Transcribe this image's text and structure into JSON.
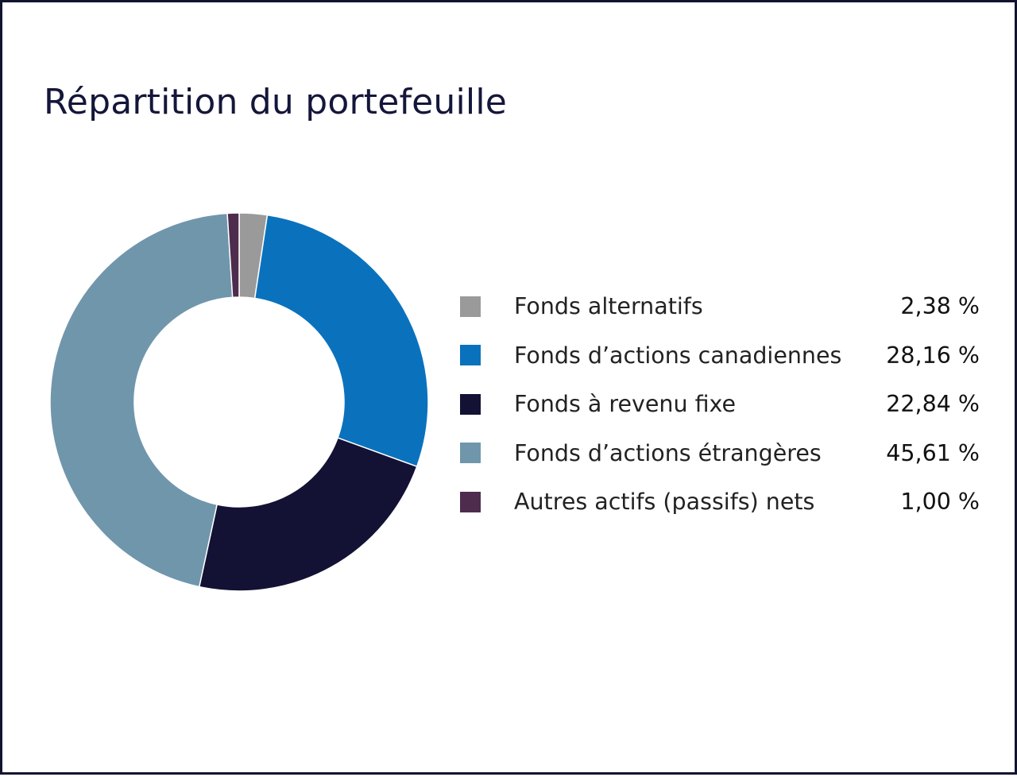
{
  "chart_data": {
    "type": "pie",
    "title": "Répartition du portefeuille",
    "unit": "%",
    "categories": [
      "Fonds alternatifs",
      "Fonds d’actions canadiennes",
      "Fonds à revenu fixe",
      "Fonds d’actions étrangères",
      "Autres actifs (passifs) nets"
    ],
    "values": [
      2.38,
      28.16,
      22.84,
      45.61,
      1.0
    ],
    "value_labels": [
      "2,38 %",
      "28,16 %",
      "22,84 %",
      "45,61 %",
      "1,00 %"
    ],
    "colors": [
      "#9a9a9a",
      "#0a72bd",
      "#131234",
      "#7096ac",
      "#4e2c4e"
    ],
    "legend": "right",
    "hole": true
  }
}
